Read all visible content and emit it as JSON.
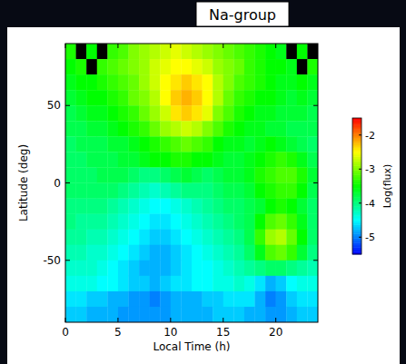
{
  "chart_data": {
    "type": "heatmap",
    "title": "Na-group",
    "x_label": "Local Time (h)",
    "y_label": "Latitude (deg)",
    "x_bins": [
      0,
      1,
      2,
      3,
      4,
      5,
      6,
      7,
      8,
      9,
      10,
      11,
      12,
      13,
      14,
      15,
      16,
      17,
      18,
      19,
      20,
      21,
      22,
      23,
      24
    ],
    "y_bins": [
      90,
      80,
      70,
      60,
      50,
      40,
      30,
      20,
      10,
      0,
      -10,
      -20,
      -30,
      -40,
      -50,
      -60,
      -70,
      -80,
      -90
    ],
    "values": [
      [
        -3.4,
        null,
        -3.5,
        null,
        -3.3,
        -3.2,
        -3.0,
        -2.9,
        -2.8,
        -2.7,
        -2.6,
        -2.7,
        -2.8,
        -2.9,
        -3.0,
        -3.1,
        -3.2,
        -3.3,
        -3.4,
        -3.5,
        -3.6,
        null,
        -3.5,
        null
      ],
      [
        -3.5,
        -3.4,
        null,
        -3.3,
        -3.2,
        -3.1,
        -3.0,
        -2.9,
        -2.7,
        -2.6,
        -2.5,
        -2.5,
        -2.6,
        -2.7,
        -2.9,
        -3.0,
        -3.1,
        -3.3,
        -3.4,
        -3.5,
        -3.5,
        -3.6,
        null,
        -3.4
      ],
      [
        -3.6,
        -3.5,
        -3.5,
        -3.4,
        -3.3,
        -3.2,
        -3.1,
        -2.9,
        -2.7,
        -2.5,
        -2.4,
        -2.3,
        -2.4,
        -2.5,
        -2.8,
        -3.0,
        -3.2,
        -3.3,
        -3.4,
        -3.5,
        -3.6,
        -3.6,
        -3.5,
        -3.6
      ],
      [
        -3.7,
        -3.6,
        -3.5,
        -3.5,
        -3.4,
        -3.3,
        -3.1,
        -3.0,
        -2.8,
        -2.5,
        -2.3,
        -2.2,
        -2.3,
        -2.5,
        -2.8,
        -3.1,
        -3.3,
        -3.4,
        -3.5,
        -3.5,
        -3.6,
        -3.7,
        -3.6,
        -3.7
      ],
      [
        -3.8,
        -3.7,
        -3.6,
        -3.6,
        -3.5,
        -3.4,
        -3.3,
        -3.1,
        -2.9,
        -2.7,
        -2.4,
        -2.3,
        -2.4,
        -2.6,
        -3.0,
        -3.2,
        -3.4,
        -3.5,
        -3.6,
        -3.6,
        -3.7,
        -3.7,
        -3.7,
        -3.8
      ],
      [
        -3.8,
        -3.8,
        -3.7,
        -3.7,
        -3.6,
        -3.5,
        -3.4,
        -3.3,
        -3.1,
        -2.9,
        -2.8,
        -2.7,
        -2.8,
        -3.0,
        -3.2,
        -3.4,
        -3.5,
        -3.6,
        -3.6,
        -3.7,
        -3.7,
        -3.8,
        -3.8,
        -3.8
      ],
      [
        -3.9,
        -3.8,
        -3.8,
        -3.8,
        -3.7,
        -3.7,
        -3.6,
        -3.5,
        -3.4,
        -3.3,
        -3.2,
        -3.1,
        -3.2,
        -3.3,
        -3.5,
        -3.6,
        -3.6,
        -3.7,
        -3.6,
        -3.5,
        -3.6,
        -3.7,
        -3.8,
        -3.9
      ],
      [
        -3.9,
        -3.9,
        -3.8,
        -3.8,
        -3.8,
        -3.7,
        -3.7,
        -3.6,
        -3.5,
        -3.5,
        -3.4,
        -3.4,
        -3.5,
        -3.5,
        -3.6,
        -3.7,
        -3.7,
        -3.6,
        -3.5,
        -3.4,
        -3.3,
        -3.4,
        -3.6,
        -3.8
      ],
      [
        -3.9,
        -3.9,
        -3.9,
        -3.8,
        -3.8,
        -3.8,
        -3.9,
        -4.0,
        -4.0,
        -3.9,
        -3.8,
        -3.7,
        -3.8,
        -3.9,
        -3.8,
        -3.7,
        -3.7,
        -3.6,
        -3.4,
        -3.3,
        -3.2,
        -3.2,
        -3.4,
        -3.7
      ],
      [
        -3.9,
        -3.9,
        -3.9,
        -3.9,
        -3.9,
        -4.0,
        -4.1,
        -4.2,
        -4.3,
        -4.2,
        -4.1,
        -4.0,
        -4.0,
        -4.0,
        -3.9,
        -3.8,
        -3.8,
        -3.7,
        -3.5,
        -3.4,
        -3.3,
        -3.3,
        -3.5,
        -3.8
      ],
      [
        -4.0,
        -4.0,
        -4.0,
        -4.0,
        -4.1,
        -4.2,
        -4.3,
        -4.4,
        -4.5,
        -4.5,
        -4.4,
        -4.3,
        -4.2,
        -4.1,
        -4.0,
        -3.9,
        -3.9,
        -3.8,
        -3.7,
        -3.5,
        -3.4,
        -3.5,
        -3.7,
        -3.9
      ],
      [
        -4.0,
        -4.1,
        -4.1,
        -4.1,
        -4.2,
        -4.3,
        -4.4,
        -4.5,
        -4.6,
        -4.6,
        -4.5,
        -4.4,
        -4.3,
        -4.2,
        -4.1,
        -4.0,
        -3.9,
        -3.8,
        -3.5,
        -3.2,
        -3.1,
        -3.3,
        -3.6,
        -3.9
      ],
      [
        -4.1,
        -4.1,
        -4.2,
        -4.2,
        -4.3,
        -4.4,
        -4.5,
        -4.6,
        -4.7,
        -4.7,
        -4.6,
        -4.5,
        -4.4,
        -4.3,
        -4.2,
        -4.1,
        -4.0,
        -3.8,
        -3.3,
        -2.9,
        -2.8,
        -3.1,
        -3.5,
        -3.9
      ],
      [
        -4.2,
        -4.2,
        -4.3,
        -4.3,
        -4.4,
        -4.5,
        -4.6,
        -4.7,
        -4.8,
        -4.8,
        -4.7,
        -4.6,
        -4.5,
        -4.4,
        -4.3,
        -4.2,
        -4.1,
        -3.9,
        -3.6,
        -3.2,
        -3.1,
        -3.3,
        -3.7,
        -4.0
      ],
      [
        -4.3,
        -4.3,
        -4.3,
        -4.4,
        -4.5,
        -4.6,
        -4.7,
        -4.8,
        -4.8,
        -4.8,
        -4.7,
        -4.6,
        -4.5,
        -4.5,
        -4.4,
        -4.3,
        -4.2,
        -4.1,
        -4.0,
        -3.9,
        -3.9,
        -4.0,
        -4.1,
        -4.2
      ],
      [
        -4.4,
        -4.4,
        -4.4,
        -4.5,
        -4.5,
        -4.6,
        -4.7,
        -4.7,
        -4.8,
        -4.7,
        -4.6,
        -4.6,
        -4.5,
        -4.5,
        -4.4,
        -4.4,
        -4.3,
        -4.4,
        -4.6,
        -4.8,
        -4.7,
        -4.5,
        -4.4,
        -4.4
      ],
      [
        -4.6,
        -4.6,
        -4.7,
        -4.7,
        -4.8,
        -4.8,
        -4.9,
        -4.9,
        -5.0,
        -4.9,
        -4.8,
        -4.8,
        -4.8,
        -4.7,
        -4.7,
        -4.6,
        -4.6,
        -4.6,
        -4.8,
        -5.0,
        -4.9,
        -4.7,
        -4.6,
        -4.6
      ],
      [
        -4.7,
        -4.7,
        -4.8,
        -4.8,
        -4.8,
        -4.9,
        -4.9,
        -4.9,
        -4.9,
        -4.9,
        -4.8,
        -4.8,
        -4.8,
        -4.8,
        -4.7,
        -4.7,
        -4.7,
        -4.8,
        -4.8,
        -4.9,
        -4.9,
        -4.8,
        -4.7,
        -4.7
      ]
    ],
    "xlim": [
      0,
      24
    ],
    "xticks": [
      0,
      5,
      10,
      15,
      20
    ],
    "ylim": [
      -90,
      90
    ],
    "yticks": [
      -50,
      0,
      50
    ],
    "color_range": [
      -5.5,
      -1.5
    ],
    "color_ticks": [
      -5,
      -4,
      -3,
      -2
    ],
    "color_label": "Log(flux)",
    "tick_labels": true
  }
}
